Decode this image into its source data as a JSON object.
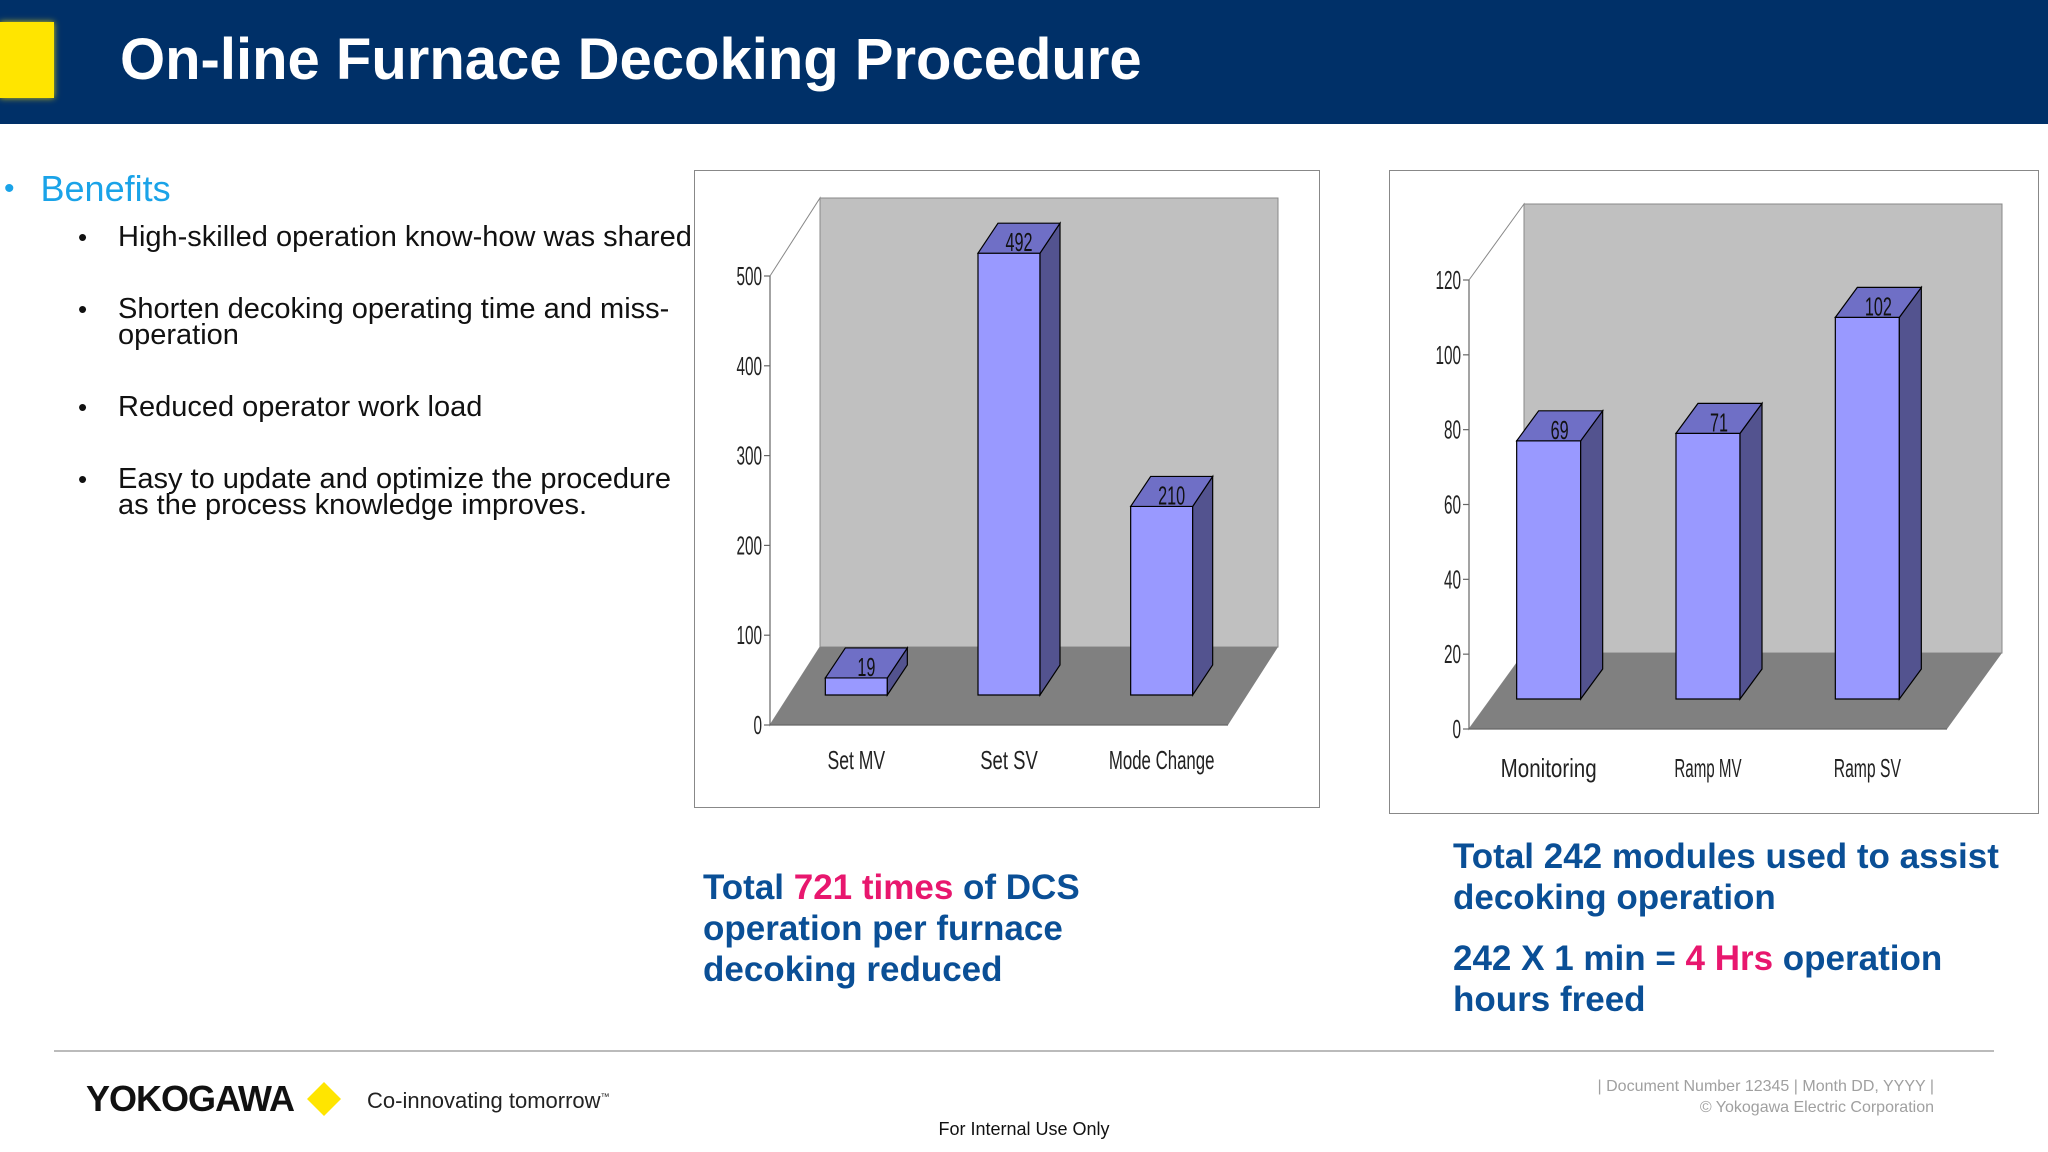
{
  "header": {
    "title": "On-line Furnace Decoking Procedure"
  },
  "benefits": {
    "heading": "Benefits",
    "items": [
      "High-skilled operation know-how was shared",
      "Shorten decoking operating time and miss-operation",
      "Reduced operator work load",
      "Easy to update and optimize the procedure as the process knowledge improves."
    ]
  },
  "chart_data": [
    {
      "type": "bar",
      "title": "",
      "categories": [
        "Set MV",
        "Set SV",
        "Mode Change"
      ],
      "values": [
        19,
        492,
        210
      ],
      "data_labels": [
        "19",
        "492",
        "210"
      ],
      "ylim": [
        0,
        500
      ],
      "yticks": [
        "0",
        "100",
        "200",
        "300",
        "400",
        "500"
      ],
      "ytick_values": [
        0,
        100,
        200,
        300,
        400,
        500
      ],
      "xlabel": "",
      "ylabel": "",
      "colors": {
        "front": "#9999ff",
        "side": "#53538f",
        "top": "#6f6fc6",
        "wall": "#c0c0c0",
        "floor": "#808080"
      }
    },
    {
      "type": "bar",
      "title": "",
      "categories": [
        "Monitoring",
        "Ramp MV",
        "Ramp SV"
      ],
      "values": [
        69,
        71,
        102
      ],
      "data_labels": [
        "69",
        "71",
        "102"
      ],
      "ylim": [
        0,
        120
      ],
      "yticks": [
        "0",
        "20",
        "40",
        "60",
        "80",
        "100",
        "120"
      ],
      "ytick_values": [
        0,
        20,
        40,
        60,
        80,
        100,
        120
      ],
      "xlabel": "",
      "ylabel": "",
      "colors": {
        "front": "#9999ff",
        "side": "#53538f",
        "top": "#6f6fc6",
        "wall": "#c0c0c0",
        "floor": "#808080"
      }
    }
  ],
  "summary1": {
    "pre": "Total ",
    "highlight": "721 times",
    "post": " of DCS operation per furnace decoking reduced"
  },
  "summary2": {
    "line1": "Total 242 modules used to assist decoking operation",
    "pre": "242 X 1 min = ",
    "highlight": "4 Hrs",
    "post": " operation hours freed"
  },
  "footer": {
    "logo": "YOKOGAWA",
    "tagline": "Co-innovating tomorrow",
    "trademark": "™",
    "doc_line1": "| Document Number 12345 | Month DD, YYYY |",
    "doc_line2": "© Yokogawa Electric Corporation",
    "internal": "For Internal Use Only"
  },
  "colors": {
    "header": "#003068",
    "accent_yellow": "#ffe500",
    "summary_blue": "#0a4f96",
    "highlight_pink": "#e8176e"
  }
}
